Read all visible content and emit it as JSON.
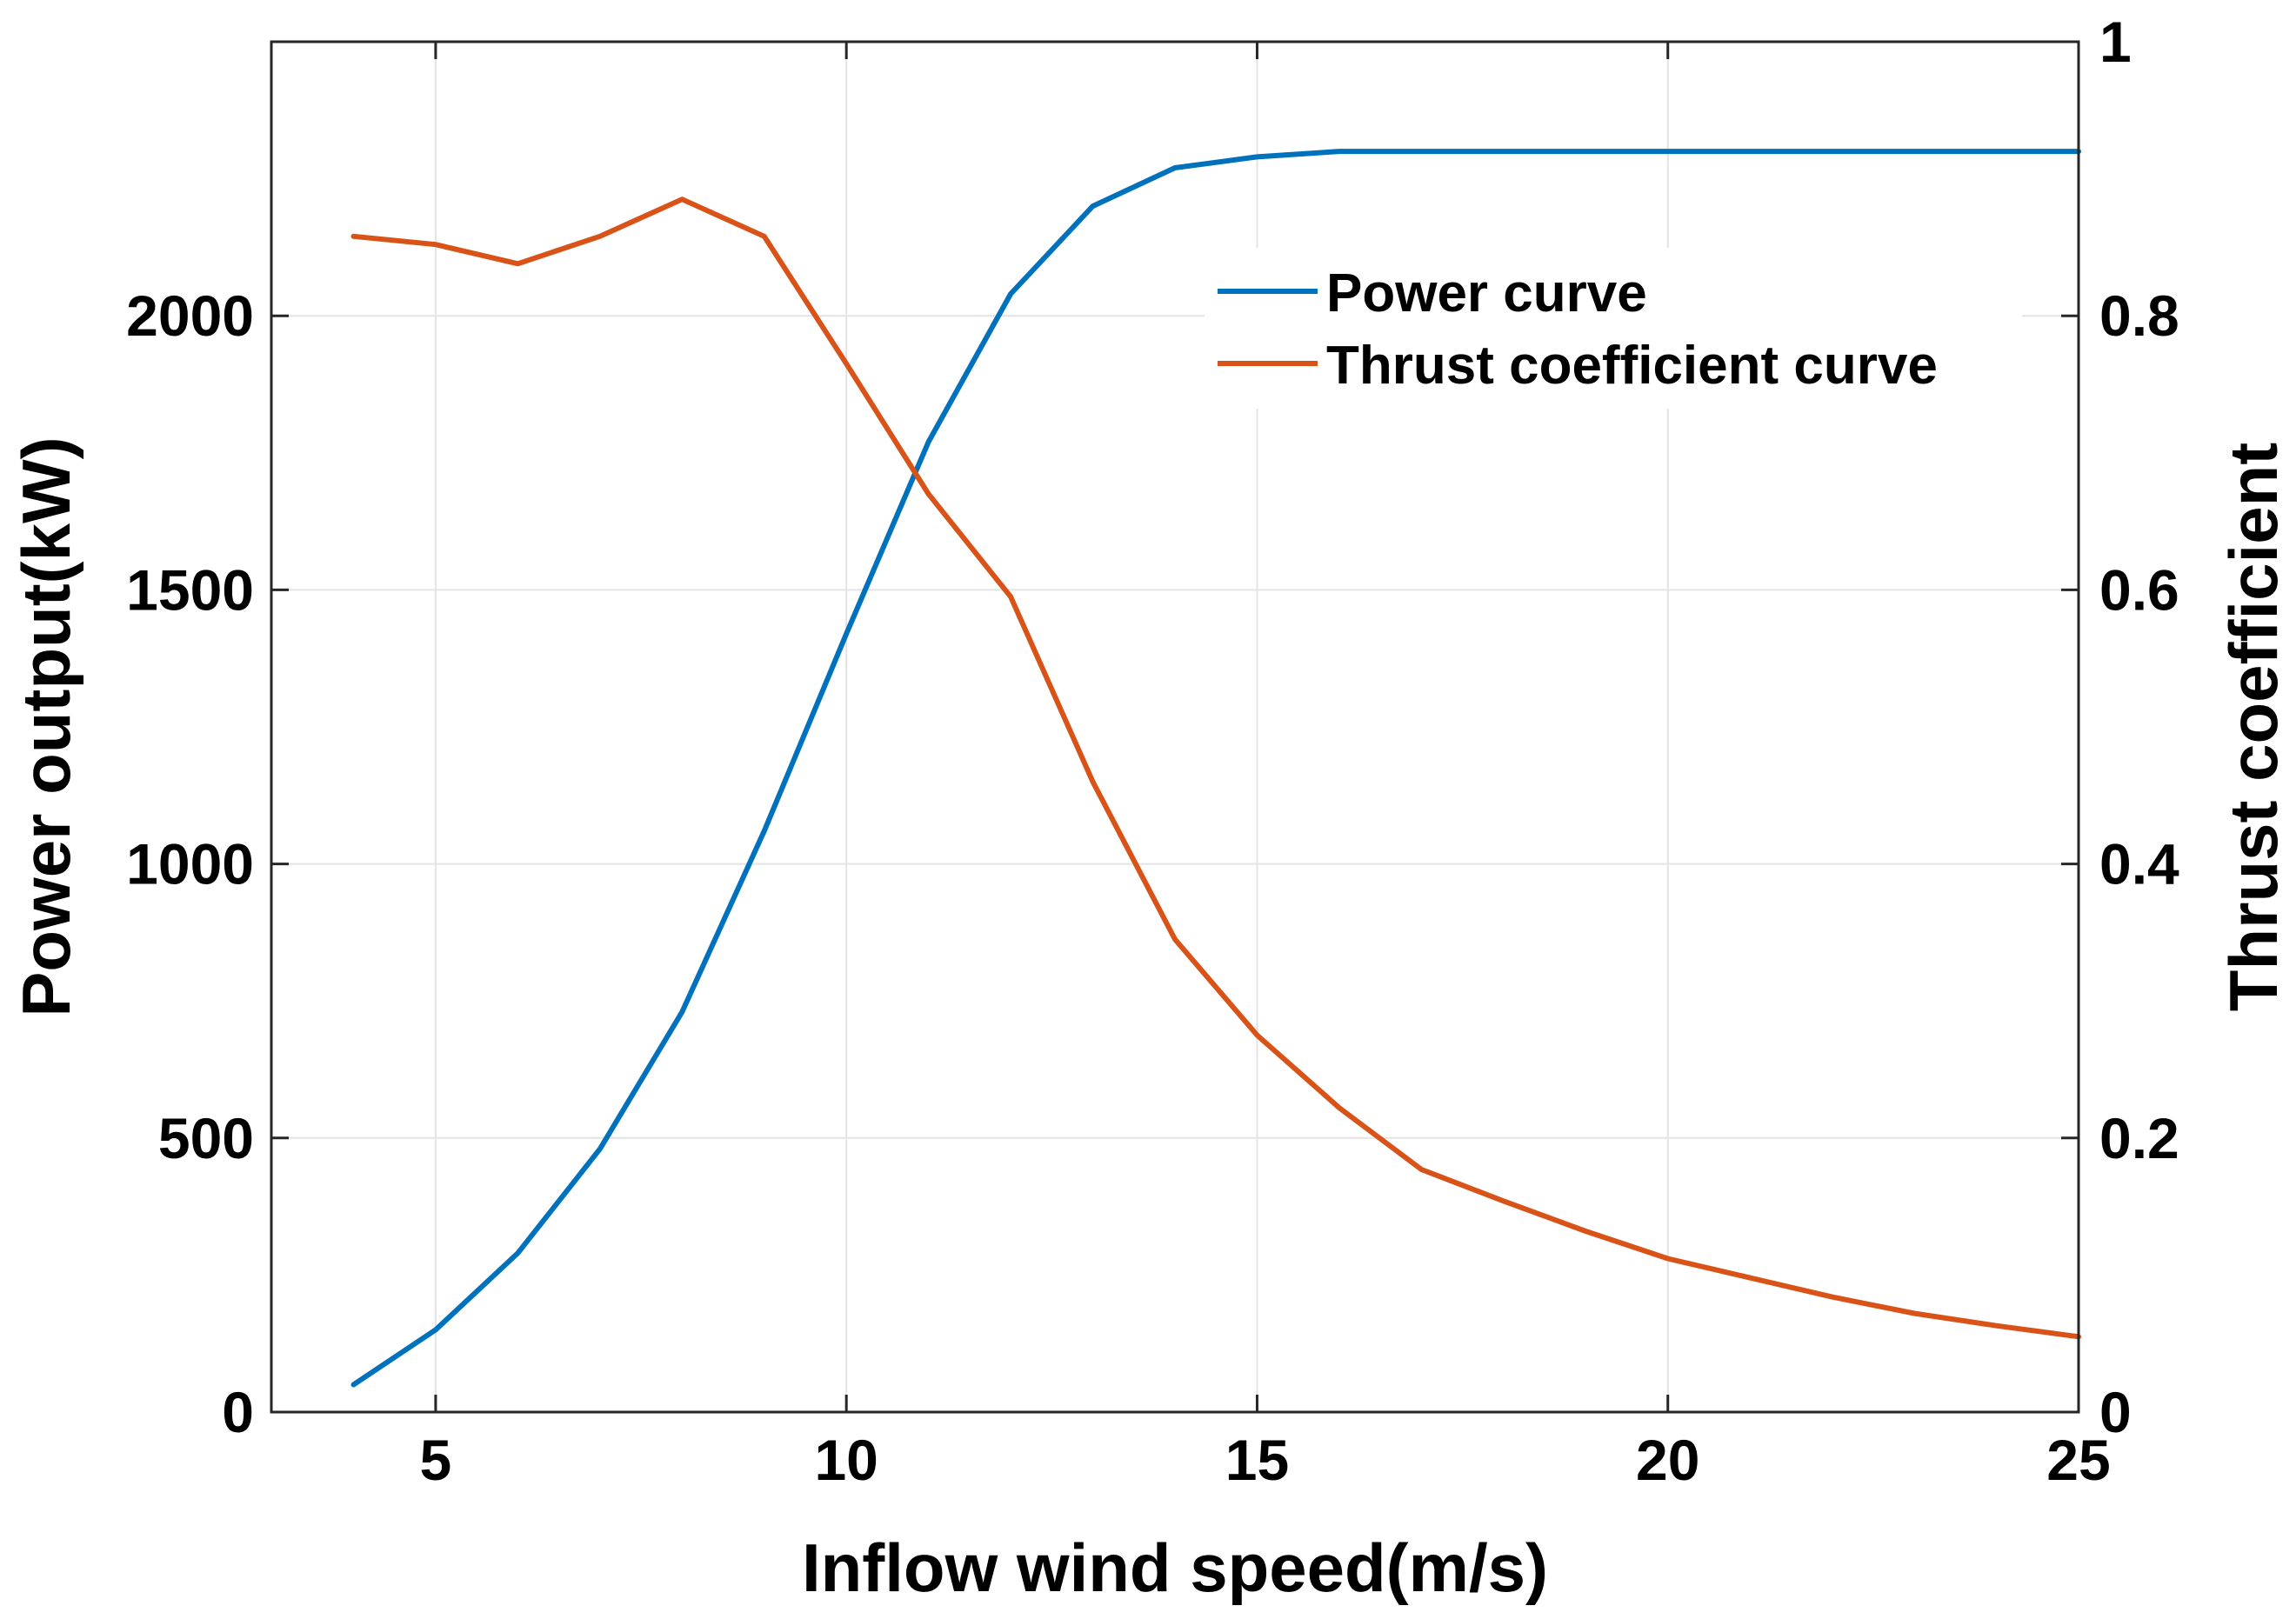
{
  "chart_data": {
    "type": "line",
    "title": "",
    "xlabel": "Inflow wind speed(m/s)",
    "ylabel_left": "Power output(kW)",
    "ylabel_right": "Thrust coefficient",
    "xlim": [
      3,
      25
    ],
    "ylim_left": [
      0,
      2500
    ],
    "ylim_right": [
      0,
      1
    ],
    "xticks": [
      5,
      10,
      15,
      20,
      25
    ],
    "yticks_left": [
      0,
      500,
      1000,
      1500,
      2000
    ],
    "yticks_right": [
      0,
      0.2,
      0.4,
      0.6,
      0.8,
      1
    ],
    "ytick_labels_right": [
      "0",
      "0.2",
      "0.4",
      "0.6",
      "0.8",
      "1"
    ],
    "grid": true,
    "legend_position": "top-right",
    "series": [
      {
        "name": "Power curve",
        "axis": "left",
        "color": "#0072BD",
        "x": [
          4,
          5,
          6,
          7,
          8,
          9,
          10,
          11,
          12,
          13,
          14,
          15,
          16,
          17,
          18,
          19,
          20,
          21,
          22,
          23,
          24,
          25
        ],
        "values": [
          50,
          150,
          290,
          480,
          730,
          1060,
          1420,
          1770,
          2040,
          2200,
          2270,
          2290,
          2300,
          2300,
          2300,
          2300,
          2300,
          2300,
          2300,
          2300,
          2300,
          2300
        ]
      },
      {
        "name": "Thrust coefficient curve",
        "axis": "right",
        "color": "#D95319",
        "x": [
          4,
          5,
          6,
          7,
          8,
          9,
          10,
          11,
          12,
          13,
          14,
          15,
          16,
          17,
          18,
          19,
          20,
          21,
          22,
          23,
          24,
          25
        ],
        "values": [
          0.858,
          0.852,
          0.838,
          0.858,
          0.885,
          0.858,
          0.765,
          0.67,
          0.595,
          0.46,
          0.345,
          0.275,
          0.222,
          0.177,
          0.154,
          0.132,
          0.112,
          0.098,
          0.084,
          0.072,
          0.063,
          0.055
        ]
      }
    ]
  }
}
